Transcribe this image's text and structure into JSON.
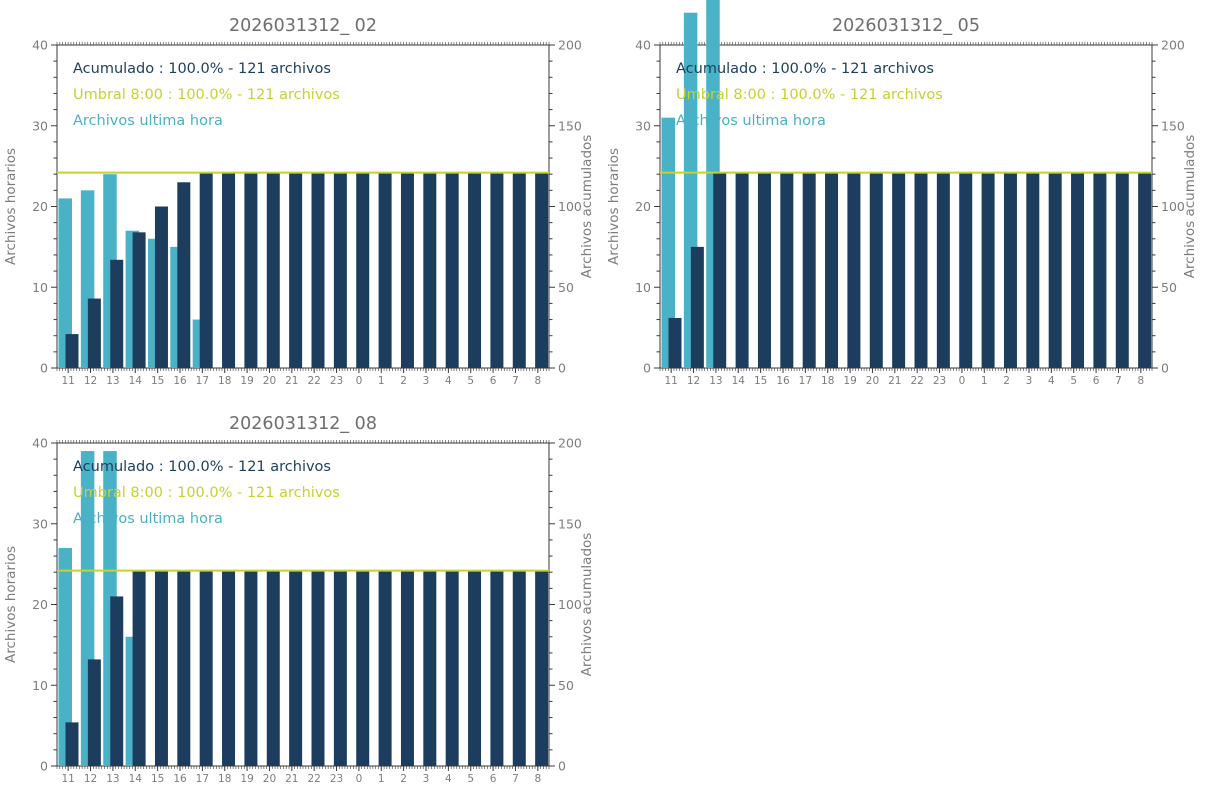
{
  "colors": {
    "hourly_bar": "#49b2c6",
    "accumulated_bar": "#1c3d5e",
    "threshold_line": "#c6d230",
    "title_text": "#6e6e6e",
    "axis_text": "#7d7d7d",
    "frame": "#3a3a3a"
  },
  "chart_data": [
    {
      "type": "bar",
      "title": "2026031312_ 02",
      "ylabel_left": "Archivos horarios",
      "ylabel_right": "Archivos acumulados",
      "ylim_left": [
        0,
        40
      ],
      "ylim_right": [
        0,
        200
      ],
      "left_ticks": [
        0,
        10,
        20,
        30,
        40
      ],
      "right_ticks": [
        0,
        50,
        100,
        150,
        200
      ],
      "categories": [
        "11",
        "12",
        "13",
        "14",
        "15",
        "16",
        "17",
        "18",
        "19",
        "20",
        "21",
        "22",
        "23",
        "0",
        "1",
        "2",
        "3",
        "4",
        "5",
        "6",
        "7",
        "8"
      ],
      "legend": {
        "acumulado": "Acumulado : 100.0% - 121 archivos",
        "umbral": "Umbral 8:00 : 100.0% - 121 archivos",
        "ultima_hora": "Archivos ultima hora"
      },
      "threshold_value": 121,
      "series": [
        {
          "name": "Archivos ultima hora",
          "axis": "left",
          "values": [
            21,
            22,
            24,
            17,
            16,
            15,
            6,
            0,
            0,
            0,
            0,
            0,
            0,
            0,
            0,
            0,
            0,
            0,
            0,
            0,
            0,
            0
          ]
        },
        {
          "name": "Acumulado",
          "axis": "right",
          "values": [
            21,
            43,
            67,
            84,
            100,
            115,
            121,
            121,
            121,
            121,
            121,
            121,
            121,
            121,
            121,
            121,
            121,
            121,
            121,
            121,
            121,
            121
          ]
        }
      ]
    },
    {
      "type": "bar",
      "title": "2026031312_ 05",
      "ylabel_left": "Archivos horarios",
      "ylabel_right": "Archivos acumulados",
      "ylim_left": [
        0,
        40
      ],
      "ylim_right": [
        0,
        200
      ],
      "left_ticks": [
        0,
        10,
        20,
        30,
        40
      ],
      "right_ticks": [
        0,
        50,
        100,
        150,
        200
      ],
      "categories": [
        "11",
        "12",
        "13",
        "14",
        "15",
        "16",
        "17",
        "18",
        "19",
        "20",
        "21",
        "22",
        "23",
        "0",
        "1",
        "2",
        "3",
        "4",
        "5",
        "6",
        "7",
        "8"
      ],
      "legend": {
        "acumulado": "Acumulado : 100.0% - 121 archivos",
        "umbral": "Umbral 8:00 : 100.0% - 121 archivos",
        "ultima_hora": "Archivos ultima hora"
      },
      "threshold_value": 121,
      "series": [
        {
          "name": "Archivos ultima hora",
          "axis": "left",
          "values": [
            31,
            44,
            46,
            0,
            0,
            0,
            0,
            0,
            0,
            0,
            0,
            0,
            0,
            0,
            0,
            0,
            0,
            0,
            0,
            0,
            0,
            0
          ]
        },
        {
          "name": "Acumulado",
          "axis": "right",
          "values": [
            31,
            75,
            121,
            121,
            121,
            121,
            121,
            121,
            121,
            121,
            121,
            121,
            121,
            121,
            121,
            121,
            121,
            121,
            121,
            121,
            121,
            121
          ]
        }
      ]
    },
    {
      "type": "bar",
      "title": "2026031312_ 08",
      "ylabel_left": "Archivos horarios",
      "ylabel_right": "Archivos acumulados",
      "ylim_left": [
        0,
        40
      ],
      "ylim_right": [
        0,
        200
      ],
      "left_ticks": [
        0,
        10,
        20,
        30,
        40
      ],
      "right_ticks": [
        0,
        50,
        100,
        150,
        200
      ],
      "categories": [
        "11",
        "12",
        "13",
        "14",
        "15",
        "16",
        "17",
        "18",
        "19",
        "20",
        "21",
        "22",
        "23",
        "0",
        "1",
        "2",
        "3",
        "4",
        "5",
        "6",
        "7",
        "8"
      ],
      "legend": {
        "acumulado": "Acumulado : 100.0% - 121 archivos",
        "umbral": "Umbral 8:00 : 100.0% - 121 archivos",
        "ultima_hora": "Archivos ultima hora"
      },
      "threshold_value": 121,
      "series": [
        {
          "name": "Archivos ultima hora",
          "axis": "left",
          "values": [
            27,
            39,
            39,
            16,
            0,
            0,
            0,
            0,
            0,
            0,
            0,
            0,
            0,
            0,
            0,
            0,
            0,
            0,
            0,
            0,
            0,
            0
          ]
        },
        {
          "name": "Acumulado",
          "axis": "right",
          "values": [
            27,
            66,
            105,
            121,
            121,
            121,
            121,
            121,
            121,
            121,
            121,
            121,
            121,
            121,
            121,
            121,
            121,
            121,
            121,
            121,
            121,
            121
          ]
        }
      ]
    }
  ]
}
